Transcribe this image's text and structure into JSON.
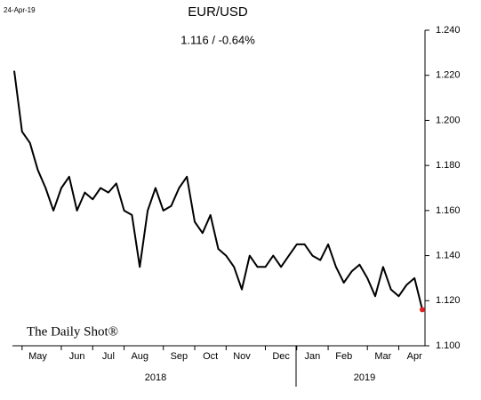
{
  "chart_data": {
    "type": "line",
    "date_stamp": "24-Apr-19",
    "title": "EUR/USD",
    "subtitle": "1.116  /  -0.64%",
    "watermark": "The Daily Shot®",
    "categories": [
      null,
      null,
      null,
      "May",
      null,
      null,
      null,
      null,
      "Jun",
      null,
      null,
      null,
      "Jul",
      null,
      null,
      null,
      "Aug",
      null,
      null,
      null,
      null,
      "Sep",
      null,
      null,
      null,
      "Oct",
      null,
      null,
      null,
      "Nov",
      null,
      null,
      null,
      null,
      "Dec",
      null,
      null,
      null,
      "Jan",
      null,
      null,
      null,
      "Feb",
      null,
      null,
      null,
      null,
      "Mar",
      null,
      null,
      null,
      "Apr",
      null
    ],
    "year_labels": [
      "2018",
      "2019"
    ],
    "values": [
      1.222,
      1.195,
      1.19,
      1.178,
      1.17,
      1.16,
      1.17,
      1.175,
      1.16,
      1.168,
      1.165,
      1.17,
      1.168,
      1.172,
      1.16,
      1.158,
      1.135,
      1.16,
      1.17,
      1.16,
      1.162,
      1.17,
      1.175,
      1.155,
      1.15,
      1.158,
      1.143,
      1.14,
      1.135,
      1.125,
      1.14,
      1.135,
      1.135,
      1.14,
      1.135,
      1.14,
      1.145,
      1.145,
      1.14,
      1.138,
      1.145,
      1.135,
      1.128,
      1.133,
      1.136,
      1.13,
      1.122,
      1.135,
      1.125,
      1.122,
      1.127,
      1.13,
      1.116
    ],
    "color": "#000000",
    "last_point_color": "#e02020",
    "ylim": [
      1.1,
      1.24
    ],
    "yticks": [
      {
        "value": 1.1,
        "label": "1.100"
      },
      {
        "value": 1.12,
        "label": "1.120"
      },
      {
        "value": 1.14,
        "label": "1.140"
      },
      {
        "value": 1.16,
        "label": "1.160"
      },
      {
        "value": 1.18,
        "label": "1.180"
      },
      {
        "value": 1.2,
        "label": "1.200"
      },
      {
        "value": 1.22,
        "label": "1.220"
      },
      {
        "value": 1.24,
        "label": "1.240"
      }
    ],
    "grid": false
  }
}
